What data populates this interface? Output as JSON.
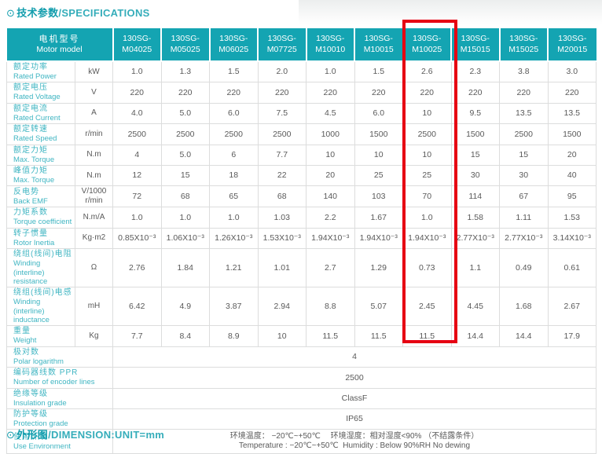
{
  "titles": {
    "bullet": "⊙",
    "top_zh": "技术参数",
    "top_sep": "/",
    "top_en": "SPECIFICATIONS",
    "bottom_zh": "外形图",
    "bottom_sep": "/",
    "bottom_en": "DIMENSION:UNIT=mm"
  },
  "colors": {
    "accent_teal": "#14a4b2",
    "label_teal": "#3fb5c2",
    "value_gray": "#595959",
    "grid_gray": "#dcdddd",
    "highlight_red": "#e60012"
  },
  "spec_table": {
    "header": {
      "model_zh": "电机型号",
      "model_en": "Motor model",
      "models": [
        {
          "line1": "130SG-",
          "line2": "M04025"
        },
        {
          "line1": "130SG-",
          "line2": "M05025"
        },
        {
          "line1": "130SG-",
          "line2": "M06025"
        },
        {
          "line1": "130SG-",
          "line2": "M07725"
        },
        {
          "line1": "130SG-",
          "line2": "M10010"
        },
        {
          "line1": "130SG-",
          "line2": "M10015"
        },
        {
          "line1": "130SG-",
          "line2": "M10025"
        },
        {
          "line1": "130SG-",
          "line2": "M15015"
        },
        {
          "line1": "130SG-",
          "line2": "M15025"
        },
        {
          "line1": "130SG-",
          "line2": "M20015"
        }
      ]
    },
    "highlighted_model": "130SG-M10025",
    "rows": [
      {
        "label_zh": "额定功率",
        "label_en": "Rated Power",
        "unit": "kW",
        "values": [
          "1.0",
          "1.3",
          "1.5",
          "2.0",
          "1.0",
          "1.5",
          "2.6",
          "2.3",
          "3.8",
          "3.0"
        ]
      },
      {
        "label_zh": "额定电压",
        "label_en": "Rated Voltage",
        "unit": "V",
        "values": [
          "220",
          "220",
          "220",
          "220",
          "220",
          "220",
          "220",
          "220",
          "220",
          "220"
        ]
      },
      {
        "label_zh": "额定电流",
        "label_en": "Rated Current",
        "unit": "A",
        "values": [
          "4.0",
          "5.0",
          "6.0",
          "7.5",
          "4.5",
          "6.0",
          "10",
          "9.5",
          "13.5",
          "13.5"
        ]
      },
      {
        "label_zh": "额定转速",
        "label_en": "Rated Speed",
        "unit": "r/min",
        "values": [
          "2500",
          "2500",
          "2500",
          "2500",
          "1000",
          "1500",
          "2500",
          "1500",
          "2500",
          "1500"
        ]
      },
      {
        "label_zh": "额定力矩",
        "label_en": "Max. Torque",
        "unit": "N.m",
        "values": [
          "4",
          "5.0",
          "6",
          "7.7",
          "10",
          "10",
          "10",
          "15",
          "15",
          "20"
        ]
      },
      {
        "label_zh": "峰值力矩",
        "label_en": "Max. Torque",
        "unit": "N.m",
        "values": [
          "12",
          "15",
          "18",
          "22",
          "20",
          "25",
          "25",
          "30",
          "30",
          "40"
        ]
      },
      {
        "label_zh": "反电势",
        "label_en": "Back EMF",
        "unit": "V/1000\nr/min",
        "values": [
          "72",
          "68",
          "65",
          "68",
          "140",
          "103",
          "70",
          "114",
          "67",
          "95"
        ]
      },
      {
        "label_zh": "力矩系数",
        "label_en": "Torque coefficient",
        "unit": "N.m/A",
        "values": [
          "1.0",
          "1.0",
          "1.0",
          "1.03",
          "2.2",
          "1.67",
          "1.0",
          "1.58",
          "1.11",
          "1.53"
        ]
      },
      {
        "label_zh": "转子惯量",
        "label_en": "Rotor Inertia",
        "unit": "Kg·m2",
        "values": [
          "0.85X10⁻³",
          "1.06X10⁻³",
          "1.26X10⁻³",
          "1.53X10⁻³",
          "1.94X10⁻³",
          "1.94X10⁻³",
          "1.94X10⁻³",
          "2.77X10⁻³",
          "2.77X10⁻³",
          "3.14X10⁻³"
        ]
      },
      {
        "label_zh": "绕组(线间)电阻",
        "label_en": "Winding (interline) resistance",
        "unit": "Ω",
        "values": [
          "2.76",
          "1.84",
          "1.21",
          "1.01",
          "2.7",
          "1.29",
          "0.73",
          "1.1",
          "0.49",
          "0.61"
        ]
      },
      {
        "label_zh": "绕组(线间)电感",
        "label_en": "Winding (interline) inductance",
        "unit": "mH",
        "values": [
          "6.42",
          "4.9",
          "3.87",
          "2.94",
          "8.8",
          "5.07",
          "2.45",
          "4.45",
          "1.68",
          "2.67"
        ]
      },
      {
        "label_zh": "重量",
        "label_en": "Weight",
        "unit": "Kg",
        "values": [
          "7.7",
          "8.4",
          "8.9",
          "10",
          "11.5",
          "11.5",
          "11.5",
          "14.4",
          "14.4",
          "17.9"
        ]
      }
    ],
    "merged_rows": [
      {
        "label_zh": "极对数",
        "label_en": "Polar logarithm",
        "lines": [
          "4"
        ]
      },
      {
        "label_zh": "编码器线数 PPR",
        "label_en": "Number of encoder lines",
        "lines": [
          "2500"
        ]
      },
      {
        "label_zh": "绝缘等级",
        "label_en": "Insulation grade",
        "lines": [
          "ClassF"
        ]
      },
      {
        "label_zh": "防护等级",
        "label_en": "Protection grade",
        "lines": [
          "IP65"
        ]
      },
      {
        "label_zh": "使用环境",
        "label_en": "Use Environment",
        "lines": [
          "环境温度： −20℃~+50℃　 环境湿度：相对湿度<90% （不结露条件）",
          "Temperature : −20℃~+50℃  Humidity : Below 90%RH No dewing"
        ]
      }
    ]
  }
}
